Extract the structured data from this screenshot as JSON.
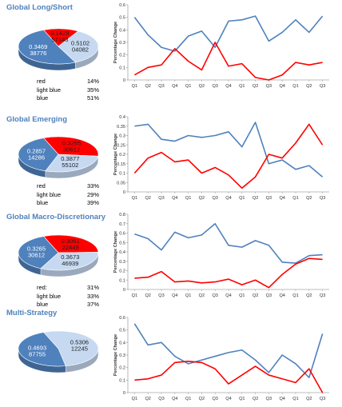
{
  "sections": [
    {
      "title": "Global Long/Short",
      "pie_labels": [
        {
          "text": "0.1429\n57143"
        },
        {
          "text": "0.5102\n04082"
        },
        {
          "text": "0.3469\n38776"
        }
      ],
      "legend": [
        {
          "label": "red",
          "value": "14%"
        },
        {
          "label": "light blue",
          "value": "35%"
        },
        {
          "label": "blue",
          "value": "51%"
        }
      ]
    },
    {
      "title": "Global Emerging",
      "pie_labels": [
        {
          "text": "0.3265\n30612"
        },
        {
          "text": "0.3877\n55102"
        },
        {
          "text": "0.2857\n14286"
        }
      ],
      "legend": [
        {
          "label": "red",
          "value": "33%"
        },
        {
          "label": "light blue",
          "value": "29%"
        },
        {
          "label": "blue",
          "value": "39%"
        }
      ]
    },
    {
      "title": "Global Macro-Discretionary",
      "pie_labels": [
        {
          "text": "0.3061\n22449"
        },
        {
          "text": "0.3673\n46939"
        },
        {
          "text": "0.3265\n30612"
        }
      ],
      "legend": [
        {
          "label": "red:",
          "value": "31%"
        },
        {
          "label": "light blue",
          "value": "33%"
        },
        {
          "label": "blue",
          "value": "37%"
        }
      ]
    },
    {
      "title": "Multi-Strategy",
      "pie_labels": [
        {
          "text": "0.5306\n12245"
        },
        {
          "text": "0.4693\n87755"
        }
      ],
      "legend": []
    }
  ],
  "colors": {
    "red": "#ff0000",
    "light_blue": "#c6d9f1",
    "blue": "#4f81bd",
    "title": "#4f81bd",
    "axis": "#a6a6a6"
  },
  "chart_data": [
    {
      "type": "pie",
      "slices": [
        {
          "label": "red",
          "value": 0.142857143,
          "color": "#ff0000"
        },
        {
          "label": "light blue",
          "value": 0.346938776,
          "color": "#c6d9f1"
        },
        {
          "label": "blue",
          "value": 0.510204082,
          "color": "#4f81bd"
        }
      ]
    },
    {
      "type": "line",
      "ylabel": "Percentage Change",
      "ylim": [
        0,
        0.6
      ],
      "yticks": [
        "0",
        "0.1",
        "0.2",
        "0.3",
        "0.4",
        "0.5",
        "0.6"
      ],
      "categories": [
        "Q1",
        "Q2",
        "Q3",
        "Q4",
        "Q1",
        "Q2",
        "Q3",
        "Q4",
        "Q1",
        "Q2",
        "Q3",
        "Q4",
        "Q1",
        "Q2",
        "Q3"
      ],
      "series": [
        {
          "color": "#4f81bd",
          "values": [
            0.5,
            0.36,
            0.26,
            0.23,
            0.35,
            0.39,
            0.26,
            0.47,
            0.48,
            0.51,
            0.31,
            0.38,
            0.48,
            0.38,
            0.51
          ]
        },
        {
          "color": "#ff0000",
          "values": [
            0.04,
            0.1,
            0.12,
            0.25,
            0.15,
            0.08,
            0.3,
            0.11,
            0.13,
            0.02,
            0.0,
            0.04,
            0.14,
            0.12,
            0.14
          ]
        }
      ]
    },
    {
      "type": "pie",
      "slices": [
        {
          "label": "red",
          "value": 0.326530612,
          "color": "#ff0000"
        },
        {
          "label": "light blue",
          "value": 0.285714286,
          "color": "#c6d9f1"
        },
        {
          "label": "blue",
          "value": 0.387755102,
          "color": "#4f81bd"
        }
      ]
    },
    {
      "type": "line",
      "ylabel": "Percentage Change",
      "ylim": [
        0,
        0.4
      ],
      "yticks": [
        "0",
        "0.05",
        "0.1",
        "0.15",
        "0.2",
        "0.25",
        "0.3",
        "0.35",
        "0.4"
      ],
      "categories": [
        "Q1",
        "Q2",
        "Q3",
        "Q4",
        "Q1",
        "Q2",
        "Q3",
        "Q4",
        "Q1",
        "Q2",
        "Q3",
        "Q4",
        "Q1",
        "Q2",
        "Q3"
      ],
      "series": [
        {
          "color": "#4f81bd",
          "values": [
            0.35,
            0.36,
            0.28,
            0.27,
            0.3,
            0.29,
            0.3,
            0.32,
            0.24,
            0.37,
            0.15,
            0.17,
            0.12,
            0.14,
            0.08
          ]
        },
        {
          "color": "#ff0000",
          "values": [
            0.1,
            0.18,
            0.21,
            0.16,
            0.17,
            0.1,
            0.13,
            0.09,
            0.02,
            0.08,
            0.2,
            0.18,
            0.26,
            0.36,
            0.25
          ]
        }
      ]
    },
    {
      "type": "pie",
      "slices": [
        {
          "label": "red",
          "value": 0.306122449,
          "color": "#ff0000"
        },
        {
          "label": "light blue",
          "value": 0.326530612,
          "color": "#c6d9f1"
        },
        {
          "label": "blue",
          "value": 0.367346939,
          "color": "#4f81bd"
        }
      ]
    },
    {
      "type": "line",
      "ylabel": "Percentage Change",
      "ylim": [
        0,
        0.8
      ],
      "yticks": [
        "0",
        "0.1",
        "0.2",
        "0.3",
        "0.4",
        "0.5",
        "0.6",
        "0.7",
        "0.8"
      ],
      "categories": [
        "Q1",
        "Q2",
        "Q3",
        "Q4",
        "Q1",
        "Q2",
        "Q3",
        "Q4",
        "Q1",
        "Q2",
        "Q3",
        "Q4",
        "Q1",
        "Q2",
        "Q3"
      ],
      "series": [
        {
          "color": "#4f81bd",
          "values": [
            0.59,
            0.54,
            0.42,
            0.61,
            0.55,
            0.58,
            0.7,
            0.47,
            0.45,
            0.52,
            0.47,
            0.29,
            0.28,
            0.36,
            0.37
          ]
        },
        {
          "color": "#ff0000",
          "values": [
            0.12,
            0.13,
            0.19,
            0.08,
            0.09,
            0.07,
            0.08,
            0.11,
            0.05,
            0.1,
            0.02,
            0.16,
            0.27,
            0.33,
            0.32
          ]
        }
      ]
    },
    {
      "type": "pie",
      "slices": [
        {
          "label": "light blue",
          "value": 0.530612245,
          "color": "#c6d9f1"
        },
        {
          "label": "blue",
          "value": 0.469387755,
          "color": "#4f81bd"
        }
      ]
    },
    {
      "type": "line",
      "ylabel": "Percentage Change",
      "ylim": [
        0,
        0.6
      ],
      "yticks": [
        "0",
        "0.1",
        "0.2",
        "0.3",
        "0.4",
        "0.5",
        "0.6"
      ],
      "categories": [
        "Q1",
        "Q2",
        "Q3",
        "Q4",
        "Q1",
        "Q2",
        "Q3",
        "Q4",
        "Q1",
        "Q2",
        "Q3",
        "Q4",
        "Q1",
        "Q2",
        "Q3"
      ],
      "series": [
        {
          "color": "#4f81bd",
          "values": [
            0.55,
            0.38,
            0.4,
            0.29,
            0.23,
            0.26,
            0.29,
            0.32,
            0.34,
            0.26,
            0.16,
            0.3,
            0.23,
            0.12,
            0.47
          ]
        },
        {
          "color": "#ff0000",
          "values": [
            0.1,
            0.11,
            0.14,
            0.24,
            0.25,
            0.24,
            0.19,
            0.07,
            0.14,
            0.21,
            0.14,
            0.11,
            0.08,
            0.19,
            0.0
          ]
        }
      ]
    }
  ]
}
